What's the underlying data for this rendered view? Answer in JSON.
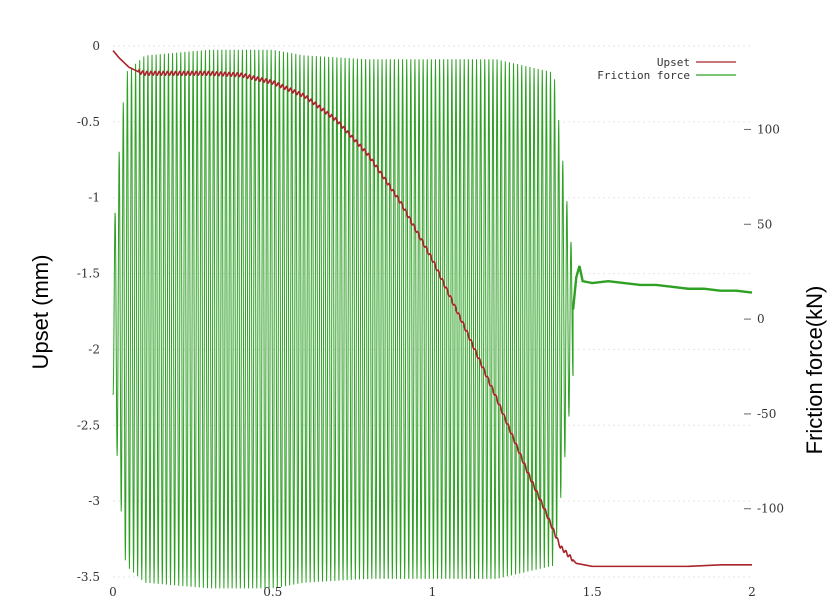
{
  "chart_data": {
    "type": "line",
    "title": "",
    "xlabel": "",
    "ylabel": "Upset (mm)",
    "y2label": "Friction force(kN)",
    "xlim": [
      0,
      2
    ],
    "ylim": [
      -3.5,
      0
    ],
    "y2lim": [
      -136,
      144
    ],
    "grid": true,
    "legend": "top-right",
    "x_ticks": [
      "0",
      "0.5",
      "1",
      "1.5",
      "2"
    ],
    "y_ticks": [
      "0",
      "-0.5",
      "-1",
      "-1.5",
      "-2",
      "-2.5",
      "-3",
      "-3.5"
    ],
    "y2_ticks": [
      "100",
      "50",
      "0",
      "-50",
      "-100"
    ],
    "colors": {
      "upset": "#a8232a",
      "friction": "#2ea024"
    },
    "series": [
      {
        "name": "Upset",
        "axis": "left",
        "x": [
          0,
          0.02,
          0.05,
          0.08,
          0.1,
          0.2,
          0.3,
          0.4,
          0.5,
          0.6,
          0.7,
          0.8,
          0.9,
          1.0,
          1.1,
          1.2,
          1.3,
          1.35,
          1.4,
          1.45,
          1.5,
          1.6,
          1.7,
          1.8,
          1.9,
          2.0
        ],
        "y": [
          -0.03,
          -0.08,
          -0.14,
          -0.17,
          -0.18,
          -0.18,
          -0.18,
          -0.19,
          -0.24,
          -0.33,
          -0.49,
          -0.72,
          -1.03,
          -1.41,
          -1.85,
          -2.32,
          -2.82,
          -3.05,
          -3.3,
          -3.41,
          -3.43,
          -3.43,
          -3.43,
          -3.43,
          -3.42,
          -3.42
        ]
      },
      {
        "name": "Friction force",
        "axis": "right",
        "oscillation": {
          "x_start": 0.0,
          "x_end": 1.44,
          "cycles": 112,
          "center": 0,
          "envelope_x": [
            0.0,
            0.02,
            0.04,
            0.1,
            0.3,
            0.5,
            0.6,
            0.8,
            1.0,
            1.2,
            1.38,
            1.41,
            1.44
          ],
          "envelope_amp": [
            40,
            90,
            130,
            139,
            142,
            142,
            139,
            137,
            137,
            137,
            130,
            80,
            30
          ]
        },
        "x": [
          1.44,
          1.45,
          1.46,
          1.47,
          1.5,
          1.55,
          1.6,
          1.65,
          1.7,
          1.75,
          1.8,
          1.85,
          1.9,
          1.95,
          2.0
        ],
        "y": [
          5,
          22,
          28,
          20,
          19,
          20,
          19,
          18,
          18,
          17,
          16,
          16,
          15,
          15,
          14
        ]
      }
    ]
  }
}
